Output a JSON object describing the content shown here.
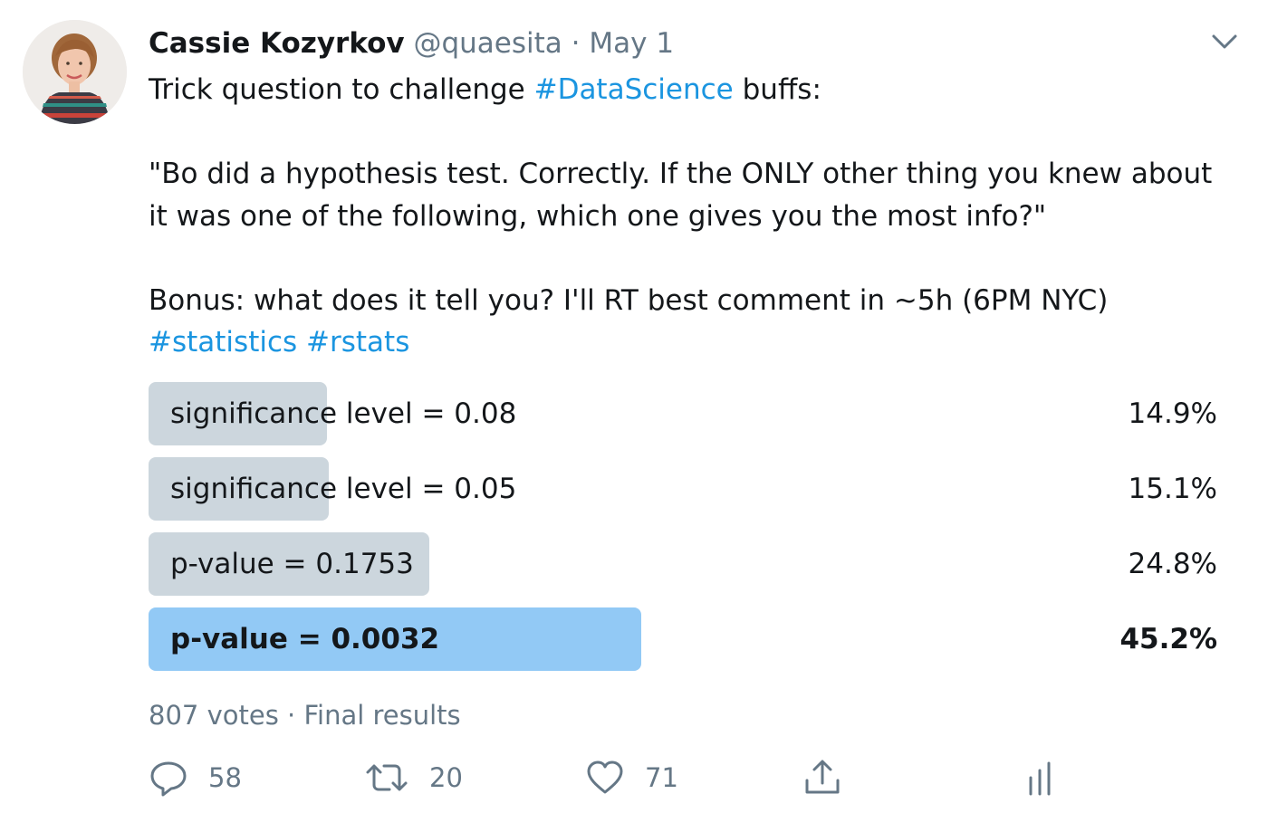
{
  "author": {
    "name": "Cassie Kozyrkov",
    "handle": "@quaesita",
    "separator": "·",
    "date": "May 1"
  },
  "tweet": {
    "line1_prefix": "Trick question to challenge ",
    "line1_hashtag": "#DataScience",
    "line1_suffix": " buffs:",
    "quote_line1": "\"Bo did a hypothesis test. Correctly. If the ONLY other thing you knew about",
    "quote_line2": "it was one of the following, which one gives you the most info?\"",
    "bonus_line": "Bonus: what does it tell you? I'll RT best comment in ~5h (6PM NYC)",
    "hashtag_statistics": "#statistics",
    "hashtag_rstats": "#rstats"
  },
  "poll": {
    "options": [
      {
        "label": "significance level = 0.08",
        "percent_text": "14.9%",
        "value": 14.9,
        "winner": false
      },
      {
        "label": "significance level = 0.05",
        "percent_text": "15.1%",
        "value": 15.1,
        "winner": false
      },
      {
        "label": "p-value = 0.1753",
        "percent_text": "24.8%",
        "value": 24.8,
        "winner": false
      },
      {
        "label": "p-value = 0.0032",
        "percent_text": "45.2%",
        "value": 45.2,
        "winner": true
      }
    ],
    "meta": "807 votes · Final results"
  },
  "actions": {
    "replies": "58",
    "retweets": "20",
    "likes": "71"
  },
  "icons": {
    "caret": "chevron-down-icon",
    "reply": "reply-icon",
    "retweet": "retweet-icon",
    "like": "heart-icon",
    "share": "share-icon",
    "analytics": "analytics-icon"
  },
  "colors": {
    "hashtag": "#1b95e0",
    "muted": "#657786",
    "poll_bar": "#ccd6dd",
    "poll_bar_winner": "#92c9f5"
  }
}
